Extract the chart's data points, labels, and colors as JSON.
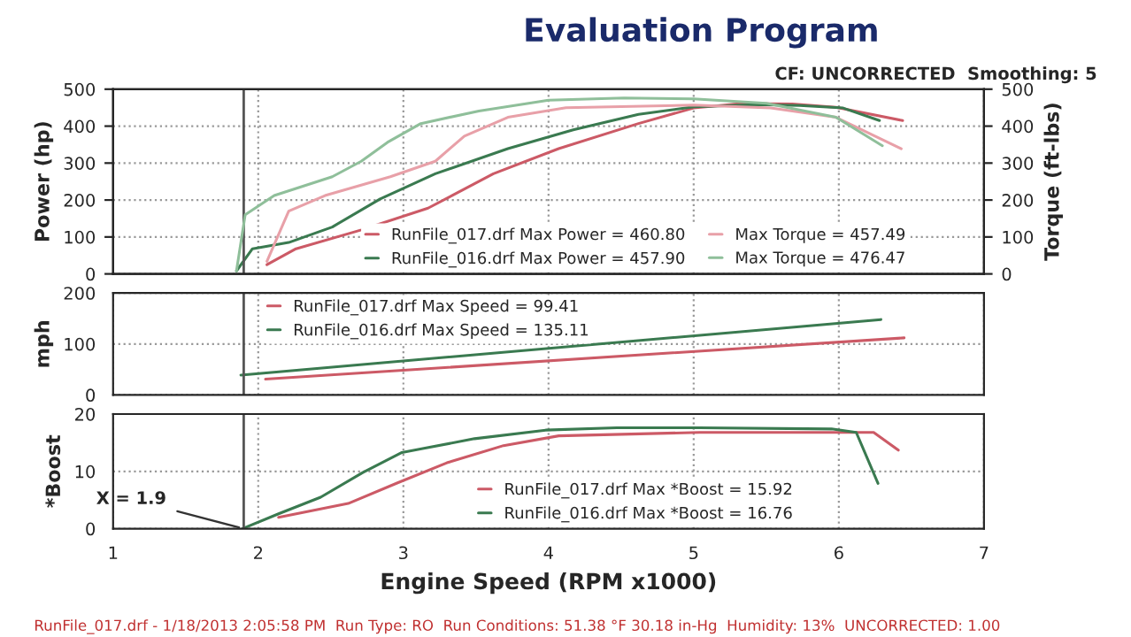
{
  "chart_data": [
    {
      "type": "line",
      "title": "Evaluation Program",
      "subtitle": "CF: UNCORRECTED  Smoothing: 5",
      "ylabel": "Power (hp)",
      "y2label": "Torque (ft-lbs)",
      "xlim": [
        1,
        7
      ],
      "xticks": [
        1,
        2,
        3,
        4,
        5,
        6,
        7
      ],
      "ylim": [
        0,
        500
      ],
      "yticks": [
        0,
        100,
        200,
        300,
        400,
        500
      ],
      "y2lim": [
        0,
        500
      ],
      "y2ticks": [
        0,
        100,
        200,
        300,
        400,
        500
      ],
      "tick_labels": "y",
      "grid": true,
      "legend": "bottom",
      "ref_lines": [
        {
          "axis": "x",
          "value": 1.9,
          "color": "#555555"
        }
      ],
      "series": [
        {
          "name": "RunFile_017.drf Max Power = 460.80",
          "color": "#cc5a66",
          "x": [
            2.06,
            2.26,
            2.71,
            3.17,
            3.62,
            4.07,
            4.62,
            5.0,
            5.33,
            5.68,
            5.98,
            6.44
          ],
          "values": [
            25,
            68,
            119,
            178,
            271,
            339,
            407,
            449,
            461,
            460,
            451,
            415
          ]
        },
        {
          "name": "RunFile_016.drf Max Power = 457.90",
          "color": "#3a7a50",
          "x": [
            1.85,
            1.96,
            2.21,
            2.51,
            2.84,
            3.22,
            3.72,
            4.17,
            4.62,
            5.0,
            5.43,
            5.73,
            6.03,
            6.28
          ],
          "values": [
            8,
            68,
            85,
            127,
            203,
            271,
            339,
            390,
            432,
            452,
            458,
            456,
            449,
            415
          ]
        },
        {
          "name": "Max Torque = 457.49",
          "color": "#e8a0a8",
          "axis": "y2",
          "x": [
            2.06,
            2.21,
            2.46,
            2.91,
            3.22,
            3.42,
            3.72,
            4.12,
            5.0,
            5.53,
            5.98,
            6.43
          ],
          "values": [
            34,
            170,
            212,
            263,
            305,
            373,
            424,
            450,
            457,
            449,
            424,
            339
          ]
        },
        {
          "name": "Max Torque = 476.47",
          "color": "#8fbf9a",
          "axis": "y2",
          "x": [
            1.85,
            1.91,
            2.11,
            2.51,
            2.71,
            2.89,
            3.12,
            3.52,
            4.0,
            4.52,
            5.0,
            5.5,
            5.98,
            6.3
          ],
          "values": [
            8,
            160,
            212,
            263,
            305,
            356,
            407,
            441,
            470,
            476,
            474,
            462,
            424,
            347
          ]
        }
      ]
    },
    {
      "type": "line",
      "ylabel": "mph",
      "xlim": [
        1,
        7
      ],
      "xticks": [
        1,
        2,
        3,
        4,
        5,
        6,
        7
      ],
      "ylim": [
        0,
        200
      ],
      "yticks": [
        0,
        100,
        200
      ],
      "tick_labels": "y",
      "grid": true,
      "legend": "top left",
      "ref_lines": [
        {
          "axis": "x",
          "value": 1.9,
          "color": "#555555"
        }
      ],
      "series": [
        {
          "name": "RunFile_017.drf Max Speed = 99.41",
          "color": "#cc5a66",
          "x": [
            2.05,
            6.45
          ],
          "values": [
            31,
            112
          ]
        },
        {
          "name": "RunFile_016.drf Max Speed = 135.11",
          "color": "#3a7a50",
          "x": [
            1.88,
            6.29
          ],
          "values": [
            39,
            148
          ]
        }
      ]
    },
    {
      "type": "line",
      "ylabel": "*Boost",
      "xlabel": "Engine Speed (RPM x1000)",
      "xlim": [
        1,
        7
      ],
      "xticks": [
        1,
        2,
        3,
        4,
        5,
        6,
        7
      ],
      "ylim": [
        0,
        20
      ],
      "yticks": [
        0,
        10,
        20
      ],
      "grid": true,
      "legend": "bottom",
      "ref_lines": [
        {
          "axis": "x",
          "value": 1.9,
          "label": "X = 1.9",
          "color": "#555555"
        }
      ],
      "annotations": [
        "RunFile_017.drf - 1/18/2013 2:05:58 PM  Run Type: RO  Run Conditions: 51.38 °F 30.18 in-Hg  Humidity: 13%  UNCORRECTED: 1.00"
      ],
      "series": [
        {
          "name": "RunFile_017.drf Max *Boost = 15.92",
          "color": "#cc5a66",
          "x": [
            2.14,
            2.62,
            2.96,
            3.3,
            3.69,
            4.07,
            5.04,
            5.95,
            6.24,
            6.41
          ],
          "values": [
            2,
            4.4,
            8,
            11.5,
            14.5,
            16.2,
            16.8,
            16.8,
            16.8,
            13.7
          ]
        },
        {
          "name": "RunFile_016.drf Max *Boost = 16.76",
          "color": "#3a7a50",
          "x": [
            1.89,
            2.14,
            2.43,
            2.72,
            2.99,
            3.49,
            3.98,
            4.47,
            5.04,
            5.95,
            6.12,
            6.27
          ],
          "values": [
            0,
            2.6,
            5.5,
            9.8,
            13.3,
            15.7,
            17.2,
            17.6,
            17.6,
            17.4,
            16.8,
            7.9
          ]
        }
      ]
    }
  ]
}
